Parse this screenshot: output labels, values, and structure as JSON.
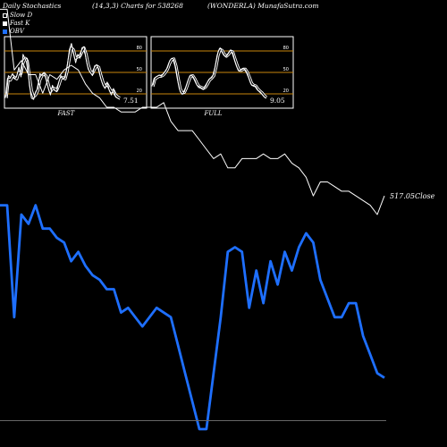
{
  "header": {
    "left": "Daily Stochastics",
    "center": "(14,3,3) Charts for 538268",
    "right": "(WONDERLA) MunafaSutra.com"
  },
  "legend": [
    {
      "label": "Slow D",
      "color": "#000000"
    },
    {
      "label": "Fast K",
      "color": "#ffffff"
    },
    {
      "label": "OBV",
      "color": "#1e6fff"
    }
  ],
  "colors": {
    "band": "#c8860b",
    "close": "#ffffff",
    "obv": "#1e6fff"
  },
  "chart_data": [
    {
      "type": "line",
      "title": "FAST",
      "ylim": [
        0,
        100
      ],
      "yticks": [
        20,
        50,
        80
      ],
      "bands": [
        20,
        50,
        80
      ],
      "last_value_label": "7.51",
      "series": [
        {
          "values": [
            12,
            45,
            42,
            48,
            40,
            45,
            58,
            43,
            78,
            70,
            72,
            30,
            10,
            8,
            20,
            25,
            48,
            45,
            50,
            40,
            25,
            15,
            30,
            22,
            20,
            35,
            45,
            40,
            42,
            60,
            85,
            95,
            80,
            65,
            78,
            72,
            88,
            90,
            70,
            55,
            50,
            45,
            60,
            62,
            55,
            40,
            30,
            25,
            35,
            22,
            15,
            25,
            12,
            10,
            8
          ]
        },
        {
          "values": [
            10,
            40,
            38,
            45,
            42,
            40,
            50,
            48,
            65,
            72,
            68,
            45,
            22,
            12,
            15,
            22,
            38,
            45,
            48,
            44,
            32,
            20,
            25,
            25,
            22,
            30,
            40,
            42,
            40,
            52,
            72,
            88,
            85,
            72,
            74,
            75,
            82,
            88,
            78,
            62,
            52,
            48,
            55,
            60,
            58,
            46,
            35,
            28,
            32,
            26,
            20,
            22,
            15,
            12,
            10
          ]
        }
      ]
    },
    {
      "type": "line",
      "title": "FULL",
      "ylim": [
        0,
        100
      ],
      "yticks": [
        20,
        50,
        80
      ],
      "bands": [
        20,
        50,
        80
      ],
      "last_value_label": "9.05",
      "series": [
        {
          "values": [
            30,
            42,
            44,
            46,
            44,
            48,
            52,
            58,
            68,
            72,
            70,
            55,
            35,
            20,
            16,
            20,
            30,
            40,
            46,
            44,
            38,
            30,
            28,
            26,
            24,
            28,
            35,
            40,
            42,
            48,
            65,
            82,
            88,
            82,
            76,
            75,
            80,
            85,
            80,
            68,
            58,
            52,
            54,
            56,
            54,
            48,
            38,
            30,
            30,
            28,
            22,
            20,
            16,
            12,
            10
          ]
        },
        {
          "values": [
            28,
            40,
            42,
            44,
            44,
            46,
            50,
            55,
            64,
            70,
            71,
            60,
            42,
            25,
            18,
            19,
            26,
            36,
            44,
            45,
            40,
            33,
            28,
            27,
            25,
            27,
            32,
            38,
            41,
            45,
            58,
            76,
            86,
            84,
            78,
            75,
            78,
            83,
            82,
            72,
            62,
            54,
            53,
            55,
            55,
            50,
            42,
            33,
            30,
            29,
            24,
            21,
            18,
            14,
            11
          ]
        }
      ]
    },
    {
      "type": "line",
      "last_close_label": "517.05Close",
      "series": [
        {
          "name": "Close",
          "values": [
            410,
            410,
            345,
            355,
            340,
            340,
            320,
            340,
            335,
            345,
            350,
            345,
            330,
            320,
            315,
            305,
            305,
            300,
            300,
            300,
            305,
            305,
            305,
            310,
            290,
            280,
            280,
            280,
            270,
            260,
            250,
            255,
            240,
            240,
            250,
            250,
            250,
            255,
            250,
            250,
            255,
            245,
            240,
            230,
            210,
            225,
            225,
            220,
            215,
            215,
            210,
            205,
            200,
            190,
            210
          ]
        },
        {
          "name": "OBV",
          "values": [
            200,
            200,
            80,
            190,
            180,
            200,
            175,
            175,
            165,
            160,
            140,
            150,
            135,
            125,
            120,
            110,
            110,
            85,
            90,
            80,
            70,
            80,
            90,
            85,
            80,
            50,
            20,
            -10,
            -40,
            -40,
            20,
            80,
            150,
            155,
            150,
            90,
            130,
            95,
            140,
            115,
            150,
            130,
            155,
            170,
            160,
            120,
            100,
            80,
            80,
            95,
            95,
            60,
            40,
            20,
            15
          ]
        }
      ]
    }
  ]
}
